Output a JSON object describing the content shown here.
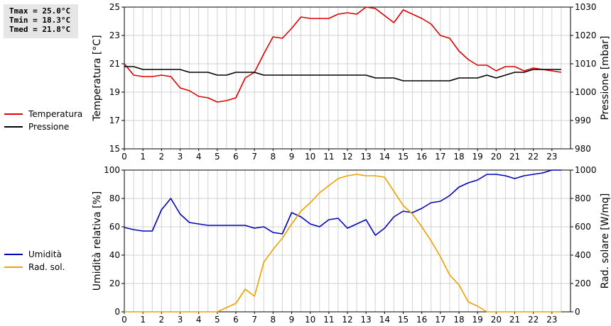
{
  "stats": {
    "tmax": "Tmax = 25.0°C",
    "tmin": "Tmin = 18.3°C",
    "tmed": "Tmed = 21.8°C"
  },
  "legend_top": [
    {
      "label": "Temperatura",
      "color": "#dd0000"
    },
    {
      "label": "Pressione",
      "color": "#000000"
    }
  ],
  "legend_bottom": [
    {
      "label": "Umidità",
      "color": "#0000bb"
    },
    {
      "label": "Rad. sol.",
      "color": "#f0a000"
    }
  ],
  "chart_data": [
    {
      "type": "line",
      "xlim": [
        0,
        24
      ],
      "x_ticks": [
        "0",
        "1",
        "2",
        "3",
        "4",
        "5",
        "6",
        "7",
        "8",
        "9",
        "10",
        "11",
        "12",
        "13",
        "14",
        "15",
        "16",
        "17",
        "18",
        "19",
        "20",
        "21",
        "22",
        "23"
      ],
      "grid": true,
      "left_axis": {
        "label": "Temperatura [°C]",
        "ylim": [
          15,
          25
        ],
        "ticks": [
          15,
          17,
          19,
          21,
          23,
          25
        ]
      },
      "right_axis": {
        "label": "Pressione [mbar]",
        "ylim": [
          980,
          1030
        ],
        "ticks": [
          980,
          990,
          1000,
          1010,
          1020,
          1030
        ]
      },
      "series": [
        {
          "name": "Temperatura",
          "axis": "left",
          "color": "#dd0000",
          "x": [
            0,
            0.5,
            1,
            1.5,
            2,
            2.5,
            3,
            3.5,
            4,
            4.5,
            5,
            5.5,
            6,
            6.5,
            7,
            7.5,
            8,
            8.5,
            9,
            9.5,
            10,
            10.5,
            11,
            11.5,
            12,
            12.5,
            13,
            13.5,
            14,
            14.5,
            15,
            15.5,
            16,
            16.5,
            17,
            17.5,
            18,
            18.5,
            19,
            19.5,
            20,
            20.5,
            21,
            21.5,
            22,
            22.5,
            23,
            23.5
          ],
          "y": [
            21.0,
            20.2,
            20.1,
            20.1,
            20.2,
            20.1,
            19.3,
            19.1,
            18.7,
            18.6,
            18.3,
            18.4,
            18.6,
            20.0,
            20.4,
            21.7,
            22.9,
            22.8,
            23.5,
            24.3,
            24.2,
            24.2,
            24.2,
            24.5,
            24.6,
            24.5,
            25.0,
            24.9,
            24.4,
            23.9,
            24.8,
            24.5,
            24.2,
            23.8,
            23.0,
            22.8,
            21.9,
            21.3,
            20.9,
            20.9,
            20.5,
            20.8,
            20.8,
            20.5,
            20.7,
            20.6,
            20.5,
            20.4
          ]
        },
        {
          "name": "Pressione",
          "axis": "right",
          "color": "#000000",
          "x": [
            0,
            0.5,
            1,
            1.5,
            2,
            2.5,
            3,
            3.5,
            4,
            4.5,
            5,
            5.5,
            6,
            6.5,
            7,
            7.5,
            8,
            8.5,
            9,
            9.5,
            10,
            10.5,
            11,
            11.5,
            12,
            12.5,
            13,
            13.5,
            14,
            14.5,
            15,
            15.5,
            16,
            16.5,
            17,
            17.5,
            18,
            18.5,
            19,
            19.5,
            20,
            20.5,
            21,
            21.5,
            22,
            22.5,
            23,
            23.5
          ],
          "y": [
            1009,
            1009,
            1008,
            1008,
            1008,
            1008,
            1008,
            1007,
            1007,
            1007,
            1006,
            1006,
            1007,
            1007,
            1007,
            1006,
            1006,
            1006,
            1006,
            1006,
            1006,
            1006,
            1006,
            1006,
            1006,
            1006,
            1006,
            1005,
            1005,
            1005,
            1004,
            1004,
            1004,
            1004,
            1004,
            1004,
            1005,
            1005,
            1005,
            1006,
            1005,
            1006,
            1007,
            1007,
            1008,
            1008,
            1008,
            1008
          ]
        }
      ]
    },
    {
      "type": "line",
      "xlim": [
        0,
        24
      ],
      "x_ticks": [
        "0",
        "1",
        "2",
        "3",
        "4",
        "5",
        "6",
        "7",
        "8",
        "9",
        "10",
        "11",
        "12",
        "13",
        "14",
        "15",
        "16",
        "17",
        "18",
        "19",
        "20",
        "21",
        "22",
        "23"
      ],
      "grid": true,
      "left_axis": {
        "label": "Umidità relativa [%]",
        "ylim": [
          0,
          100
        ],
        "ticks": [
          0,
          20,
          40,
          60,
          80,
          100
        ]
      },
      "right_axis": {
        "label": "Rad. solare [W/mq]",
        "ylim": [
          0,
          1000
        ],
        "ticks": [
          0,
          200,
          400,
          600,
          800,
          1000
        ]
      },
      "series": [
        {
          "name": "Umidità",
          "axis": "left",
          "color": "#0000bb",
          "x": [
            0,
            0.5,
            1,
            1.5,
            2,
            2.5,
            3,
            3.5,
            4,
            4.5,
            5,
            5.5,
            6,
            6.5,
            7,
            7.5,
            8,
            8.5,
            9,
            9.5,
            10,
            10.5,
            11,
            11.5,
            12,
            12.5,
            13,
            13.5,
            14,
            14.5,
            15,
            15.5,
            16,
            16.5,
            17,
            17.5,
            18,
            18.5,
            19,
            19.5,
            20,
            20.5,
            21,
            21.5,
            22,
            22.5,
            23,
            23.5
          ],
          "y": [
            59.5,
            58,
            57,
            57,
            72,
            80,
            69,
            63,
            62,
            61,
            61,
            61,
            61,
            61,
            59,
            60,
            56,
            55,
            70,
            67,
            62,
            60,
            65,
            66,
            59,
            62,
            65,
            54,
            59,
            67,
            71,
            70,
            73,
            77,
            78,
            82,
            88,
            91,
            93,
            97,
            97,
            96,
            94,
            96,
            97,
            98,
            100,
            100
          ]
        },
        {
          "name": "Rad. sol.",
          "axis": "right",
          "color": "#f0a000",
          "x": [
            0,
            0.5,
            1,
            1.5,
            2,
            2.5,
            3,
            3.5,
            4,
            4.5,
            5,
            5.5,
            6,
            6.5,
            7,
            7.5,
            8,
            8.5,
            9,
            9.5,
            10,
            10.5,
            11,
            11.5,
            12,
            12.5,
            13,
            13.5,
            14,
            14.5,
            15,
            15.5,
            16,
            16.5,
            17,
            17.5,
            18,
            18.5,
            19,
            19.5,
            20,
            20.5,
            21,
            21.5,
            22,
            22.5,
            23,
            23.5
          ],
          "y": [
            0,
            0,
            0,
            0,
            0,
            0,
            0,
            0,
            0,
            0,
            0,
            30,
            60,
            160,
            110,
            350,
            440,
            520,
            620,
            710,
            770,
            840,
            890,
            940,
            960,
            970,
            960,
            960,
            950,
            850,
            750,
            690,
            600,
            500,
            390,
            260,
            190,
            70,
            40,
            0,
            0,
            0,
            0,
            0,
            0,
            0,
            0,
            0
          ]
        }
      ]
    }
  ]
}
